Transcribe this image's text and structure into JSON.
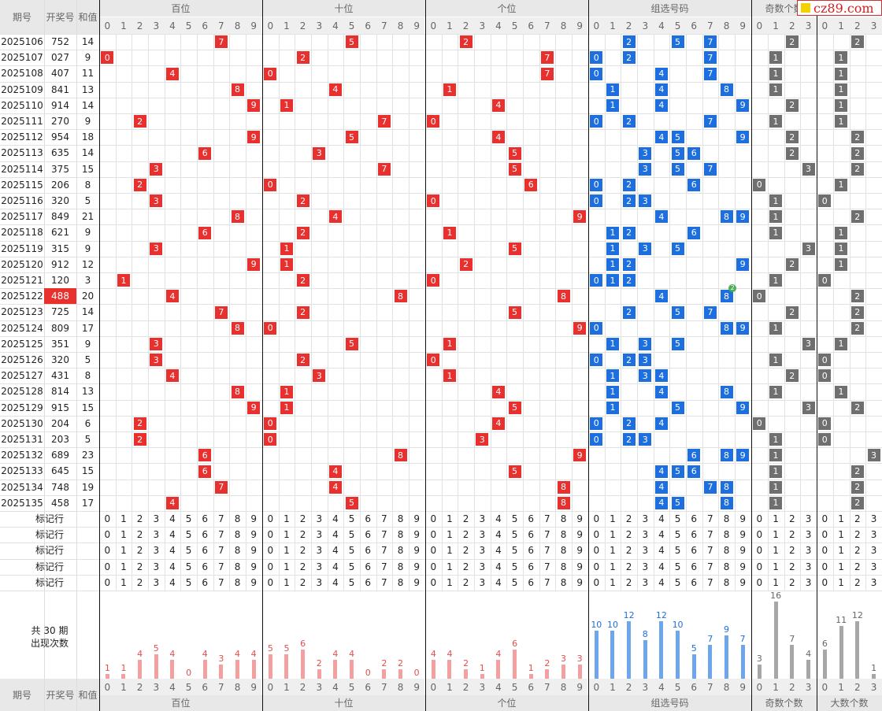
{
  "header": {
    "issue_label": "期号",
    "draw_label": "开奖号",
    "sum_label": "和值",
    "groups": [
      "百位",
      "十位",
      "个位",
      "组选号码",
      "奇数个数",
      "大数个数"
    ],
    "digits10": [
      "0",
      "1",
      "2",
      "3",
      "4",
      "5",
      "6",
      "7",
      "8",
      "9"
    ],
    "digits4": [
      "0",
      "1",
      "2",
      "3"
    ]
  },
  "logo": {
    "text": "cz89.com"
  },
  "rows": [
    {
      "issue": "2025106",
      "draw": "752",
      "sum": "14",
      "odd": 2,
      "big": 2
    },
    {
      "issue": "2025107",
      "draw": "027",
      "sum": "9",
      "odd": 1,
      "big": 1
    },
    {
      "issue": "2025108",
      "draw": "407",
      "sum": "11",
      "odd": 1,
      "big": 1
    },
    {
      "issue": "2025109",
      "draw": "841",
      "sum": "13",
      "odd": 1,
      "big": 1
    },
    {
      "issue": "2025110",
      "draw": "914",
      "sum": "14",
      "odd": 2,
      "big": 1
    },
    {
      "issue": "2025111",
      "draw": "270",
      "sum": "9",
      "odd": 1,
      "big": 1
    },
    {
      "issue": "2025112",
      "draw": "954",
      "sum": "18",
      "odd": 2,
      "big": 2
    },
    {
      "issue": "2025113",
      "draw": "635",
      "sum": "14",
      "odd": 2,
      "big": 2
    },
    {
      "issue": "2025114",
      "draw": "375",
      "sum": "15",
      "odd": 3,
      "big": 2
    },
    {
      "issue": "2025115",
      "draw": "206",
      "sum": "8",
      "odd": 0,
      "big": 1
    },
    {
      "issue": "2025116",
      "draw": "320",
      "sum": "5",
      "odd": 1,
      "big": 0
    },
    {
      "issue": "2025117",
      "draw": "849",
      "sum": "21",
      "odd": 1,
      "big": 2
    },
    {
      "issue": "2025118",
      "draw": "621",
      "sum": "9",
      "odd": 1,
      "big": 1
    },
    {
      "issue": "2025119",
      "draw": "315",
      "sum": "9",
      "odd": 3,
      "big": 1
    },
    {
      "issue": "2025120",
      "draw": "912",
      "sum": "12",
      "odd": 2,
      "big": 1
    },
    {
      "issue": "2025121",
      "draw": "120",
      "sum": "3",
      "odd": 1,
      "big": 0
    },
    {
      "issue": "2025122",
      "draw": "488",
      "sum": "20",
      "odd": 0,
      "big": 2,
      "highlight": true
    },
    {
      "issue": "2025123",
      "draw": "725",
      "sum": "14",
      "odd": 2,
      "big": 2
    },
    {
      "issue": "2025124",
      "draw": "809",
      "sum": "17",
      "odd": 1,
      "big": 2
    },
    {
      "issue": "2025125",
      "draw": "351",
      "sum": "9",
      "odd": 3,
      "big": 1
    },
    {
      "issue": "2025126",
      "draw": "320",
      "sum": "5",
      "odd": 1,
      "big": 0
    },
    {
      "issue": "2025127",
      "draw": "431",
      "sum": "8",
      "odd": 2,
      "big": 0
    },
    {
      "issue": "2025128",
      "draw": "814",
      "sum": "13",
      "odd": 1,
      "big": 1
    },
    {
      "issue": "2025129",
      "draw": "915",
      "sum": "15",
      "odd": 3,
      "big": 2
    },
    {
      "issue": "2025130",
      "draw": "204",
      "sum": "6",
      "odd": 0,
      "big": 0
    },
    {
      "issue": "2025131",
      "draw": "203",
      "sum": "5",
      "odd": 1,
      "big": 0
    },
    {
      "issue": "2025132",
      "draw": "689",
      "sum": "23",
      "odd": 1,
      "big": 3
    },
    {
      "issue": "2025133",
      "draw": "645",
      "sum": "15",
      "odd": 1,
      "big": 2
    },
    {
      "issue": "2025134",
      "draw": "748",
      "sum": "19",
      "odd": 1,
      "big": 2
    },
    {
      "issue": "2025135",
      "draw": "458",
      "sum": "17",
      "odd": 1,
      "big": 2
    }
  ],
  "mark_label": "标记行",
  "mark_rows": 5,
  "summary": {
    "line1": "共 30 期",
    "line2": "出现次数"
  },
  "dup_badge": "2",
  "counts": {
    "hundreds": [
      1,
      1,
      4,
      5,
      4,
      0,
      4,
      3,
      4,
      4
    ],
    "tens": [
      5,
      5,
      6,
      2,
      4,
      4,
      0,
      2,
      2,
      0
    ],
    "units": [
      4,
      4,
      2,
      1,
      4,
      6,
      1,
      2,
      3,
      3
    ],
    "group": [
      10,
      10,
      12,
      8,
      12,
      10,
      5,
      7,
      9,
      7
    ],
    "odd": [
      3,
      16,
      7,
      4
    ],
    "big": [
      6,
      11,
      12,
      1
    ]
  },
  "colors": {
    "red": "#e8302e",
    "blue": "#1d6fe0",
    "gray": "#6f6f6f",
    "bar_red": "#f5a0a0",
    "bar_blue": "#6ea6ee",
    "bar_gray": "#a7a7a7"
  }
}
